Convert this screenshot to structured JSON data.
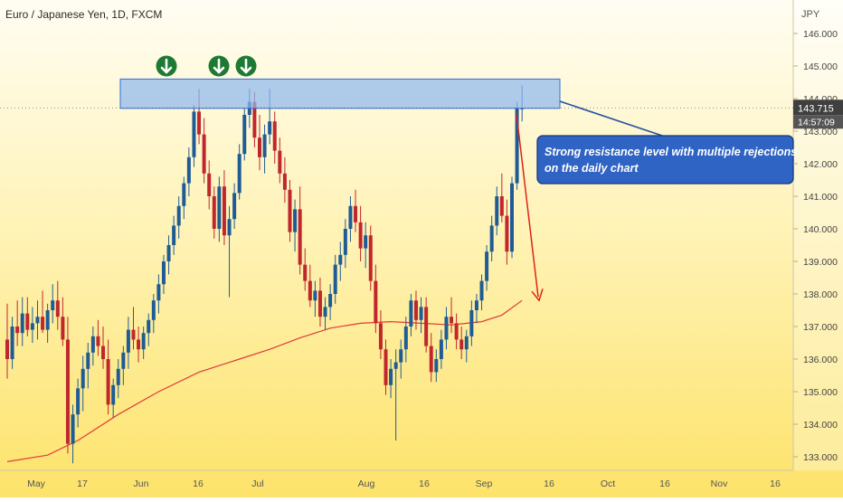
{
  "chart_data": {
    "type": "candlestick",
    "title": "Euro / Japanese Yen, 1D, FXCM",
    "currency": "JPY",
    "ylim": [
      132.8,
      146.4
    ],
    "y_ticks": [
      "133.000",
      "134.000",
      "135.000",
      "136.000",
      "137.000",
      "138.000",
      "139.000",
      "140.000",
      "141.000",
      "142.000",
      "143.000",
      "144.000",
      "145.000",
      "146.000"
    ],
    "x_labels": [
      "May",
      "17",
      "Jun",
      "16",
      "Jul",
      "Aug",
      "16",
      "Sep",
      "16",
      "Oct",
      "16",
      "Nov",
      "16"
    ],
    "last_price": "143.715",
    "countdown": "14:57:09",
    "colors": {
      "up": "#1f5c96",
      "down": "#c0272d",
      "ma": "#e03a3a",
      "zone_fill": "#8fb8f0",
      "zone_stroke": "#2f6fd6",
      "arrow": "#e0201a",
      "marker": "#1e7a33",
      "callout_bg": "#2f63c4",
      "callout_border": "#173a78"
    },
    "resistance_zone": [
      143.7,
      144.6
    ],
    "rejection_markers": 3,
    "annotation": {
      "line1": "Strong resistance level with multiple rejections",
      "line2": "on the daily chart"
    },
    "forecast_arrow": {
      "from": 143.7,
      "to": 137.8
    },
    "candles": [
      [
        136.6,
        137.7,
        135.4,
        136.0
      ],
      [
        136.0,
        137.3,
        135.7,
        137.0
      ],
      [
        137.0,
        137.8,
        136.4,
        136.8
      ],
      [
        136.8,
        137.9,
        136.4,
        137.4
      ],
      [
        137.4,
        137.9,
        136.7,
        136.9
      ],
      [
        136.9,
        137.6,
        136.5,
        137.1
      ],
      [
        137.1,
        137.8,
        136.6,
        137.3
      ],
      [
        137.3,
        138.1,
        136.8,
        136.9
      ],
      [
        136.9,
        137.7,
        136.5,
        137.5
      ],
      [
        137.5,
        138.3,
        137.1,
        137.8
      ],
      [
        137.8,
        138.4,
        136.9,
        137.3
      ],
      [
        137.3,
        137.9,
        136.4,
        136.6
      ],
      [
        136.6,
        137.3,
        133.1,
        133.4
      ],
      [
        133.4,
        134.6,
        132.8,
        134.3
      ],
      [
        134.3,
        135.4,
        133.9,
        135.1
      ],
      [
        135.1,
        136.1,
        134.4,
        135.7
      ],
      [
        135.7,
        136.5,
        135.1,
        136.2
      ],
      [
        136.2,
        137.0,
        135.8,
        136.7
      ],
      [
        136.7,
        137.2,
        136.1,
        136.4
      ],
      [
        136.4,
        137.0,
        135.7,
        136.0
      ],
      [
        136.0,
        136.6,
        134.3,
        134.6
      ],
      [
        134.6,
        135.4,
        134.2,
        135.2
      ],
      [
        135.2,
        136.0,
        134.8,
        135.7
      ],
      [
        135.7,
        136.4,
        135.2,
        136.2
      ],
      [
        136.2,
        137.3,
        135.7,
        136.9
      ],
      [
        136.9,
        137.6,
        136.3,
        136.6
      ],
      [
        136.6,
        137.0,
        135.9,
        136.3
      ],
      [
        136.3,
        137.0,
        136.0,
        136.8
      ],
      [
        136.8,
        137.4,
        136.4,
        137.2
      ],
      [
        137.2,
        138.0,
        136.8,
        137.8
      ],
      [
        137.8,
        138.6,
        137.4,
        138.3
      ],
      [
        138.3,
        139.2,
        138.0,
        139.0
      ],
      [
        139.0,
        139.8,
        138.6,
        139.5
      ],
      [
        139.5,
        140.4,
        139.2,
        140.1
      ],
      [
        140.1,
        141.0,
        139.7,
        140.7
      ],
      [
        140.7,
        141.6,
        140.3,
        141.4
      ],
      [
        141.4,
        142.5,
        141.0,
        142.2
      ],
      [
        142.2,
        143.8,
        141.9,
        143.6
      ],
      [
        143.6,
        144.3,
        142.6,
        142.9
      ],
      [
        142.9,
        143.4,
        141.4,
        141.7
      ],
      [
        141.7,
        142.1,
        140.6,
        141.0
      ],
      [
        141.0,
        141.3,
        139.7,
        140.0
      ],
      [
        140.0,
        141.6,
        139.6,
        141.3
      ],
      [
        141.3,
        141.8,
        139.5,
        139.8
      ],
      [
        139.8,
        140.7,
        137.9,
        140.3
      ],
      [
        140.3,
        141.4,
        140.0,
        141.1
      ],
      [
        141.1,
        142.6,
        140.9,
        142.3
      ],
      [
        142.3,
        143.7,
        142.1,
        143.5
      ],
      [
        143.5,
        144.3,
        143.1,
        143.9
      ],
      [
        143.9,
        144.2,
        142.5,
        142.8
      ],
      [
        142.8,
        143.5,
        141.8,
        142.2
      ],
      [
        142.2,
        143.2,
        141.7,
        142.9
      ],
      [
        142.9,
        144.3,
        142.6,
        143.3
      ],
      [
        143.3,
        143.6,
        142.0,
        142.4
      ],
      [
        142.4,
        142.8,
        141.4,
        141.7
      ],
      [
        141.7,
        142.2,
        140.8,
        141.2
      ],
      [
        141.2,
        141.5,
        139.6,
        139.9
      ],
      [
        139.9,
        140.9,
        139.3,
        140.6
      ],
      [
        140.6,
        141.3,
        138.6,
        138.9
      ],
      [
        138.9,
        139.4,
        138.1,
        138.4
      ],
      [
        138.4,
        138.9,
        137.6,
        137.8
      ],
      [
        137.8,
        138.4,
        137.3,
        138.1
      ],
      [
        138.1,
        138.5,
        137.0,
        137.3
      ],
      [
        137.3,
        137.9,
        136.9,
        137.6
      ],
      [
        137.6,
        138.3,
        137.2,
        138.0
      ],
      [
        138.0,
        139.2,
        137.7,
        138.9
      ],
      [
        138.9,
        139.6,
        138.4,
        139.2
      ],
      [
        139.2,
        140.3,
        138.8,
        140.0
      ],
      [
        140.0,
        141.0,
        139.6,
        140.7
      ],
      [
        140.7,
        141.2,
        139.9,
        140.2
      ],
      [
        140.2,
        140.7,
        139.0,
        139.4
      ],
      [
        139.4,
        140.2,
        138.8,
        139.8
      ],
      [
        139.8,
        140.1,
        138.1,
        138.4
      ],
      [
        138.4,
        138.9,
        136.8,
        137.1
      ],
      [
        137.1,
        137.5,
        136.0,
        136.3
      ],
      [
        136.3,
        136.6,
        134.9,
        135.2
      ],
      [
        135.2,
        136.0,
        134.8,
        135.7
      ],
      [
        135.7,
        136.3,
        133.5,
        135.9
      ],
      [
        135.9,
        136.6,
        135.4,
        136.3
      ],
      [
        136.3,
        137.3,
        135.9,
        137.0
      ],
      [
        137.0,
        138.0,
        136.7,
        137.8
      ],
      [
        137.8,
        138.1,
        136.9,
        137.2
      ],
      [
        137.2,
        137.9,
        136.8,
        137.6
      ],
      [
        137.6,
        137.9,
        136.2,
        136.4
      ],
      [
        136.4,
        136.8,
        135.3,
        135.6
      ],
      [
        135.6,
        136.3,
        135.3,
        136.0
      ],
      [
        136.0,
        136.9,
        135.7,
        136.6
      ],
      [
        136.6,
        137.6,
        136.3,
        137.3
      ],
      [
        137.3,
        137.9,
        136.8,
        137.1
      ],
      [
        137.1,
        137.4,
        136.3,
        136.6
      ],
      [
        136.6,
        137.0,
        136.0,
        136.3
      ],
      [
        136.3,
        136.9,
        135.9,
        136.7
      ],
      [
        136.7,
        137.8,
        136.4,
        137.5
      ],
      [
        137.5,
        138.0,
        137.1,
        137.8
      ],
      [
        137.8,
        138.6,
        137.5,
        138.4
      ],
      [
        138.4,
        139.5,
        138.1,
        139.3
      ],
      [
        139.3,
        140.4,
        139.0,
        140.1
      ],
      [
        140.1,
        141.3,
        139.8,
        141.0
      ],
      [
        141.0,
        141.7,
        140.2,
        140.4
      ],
      [
        140.4,
        140.9,
        138.9,
        139.3
      ],
      [
        139.3,
        141.6,
        139.1,
        141.4
      ],
      [
        141.4,
        143.9,
        141.2,
        143.7
      ],
      [
        143.7,
        144.4,
        143.3,
        143.7
      ]
    ],
    "ma_points": [
      [
        0,
        132.85
      ],
      [
        8,
        133.05
      ],
      [
        14,
        133.5
      ],
      [
        22,
        134.3
      ],
      [
        30,
        135.0
      ],
      [
        38,
        135.6
      ],
      [
        46,
        136.0
      ],
      [
        52,
        136.3
      ],
      [
        58,
        136.65
      ],
      [
        64,
        136.95
      ],
      [
        70,
        137.1
      ],
      [
        76,
        137.15
      ],
      [
        82,
        137.1
      ],
      [
        88,
        137.05
      ],
      [
        94,
        137.15
      ],
      [
        98,
        137.35
      ],
      [
        102,
        137.8
      ]
    ]
  }
}
